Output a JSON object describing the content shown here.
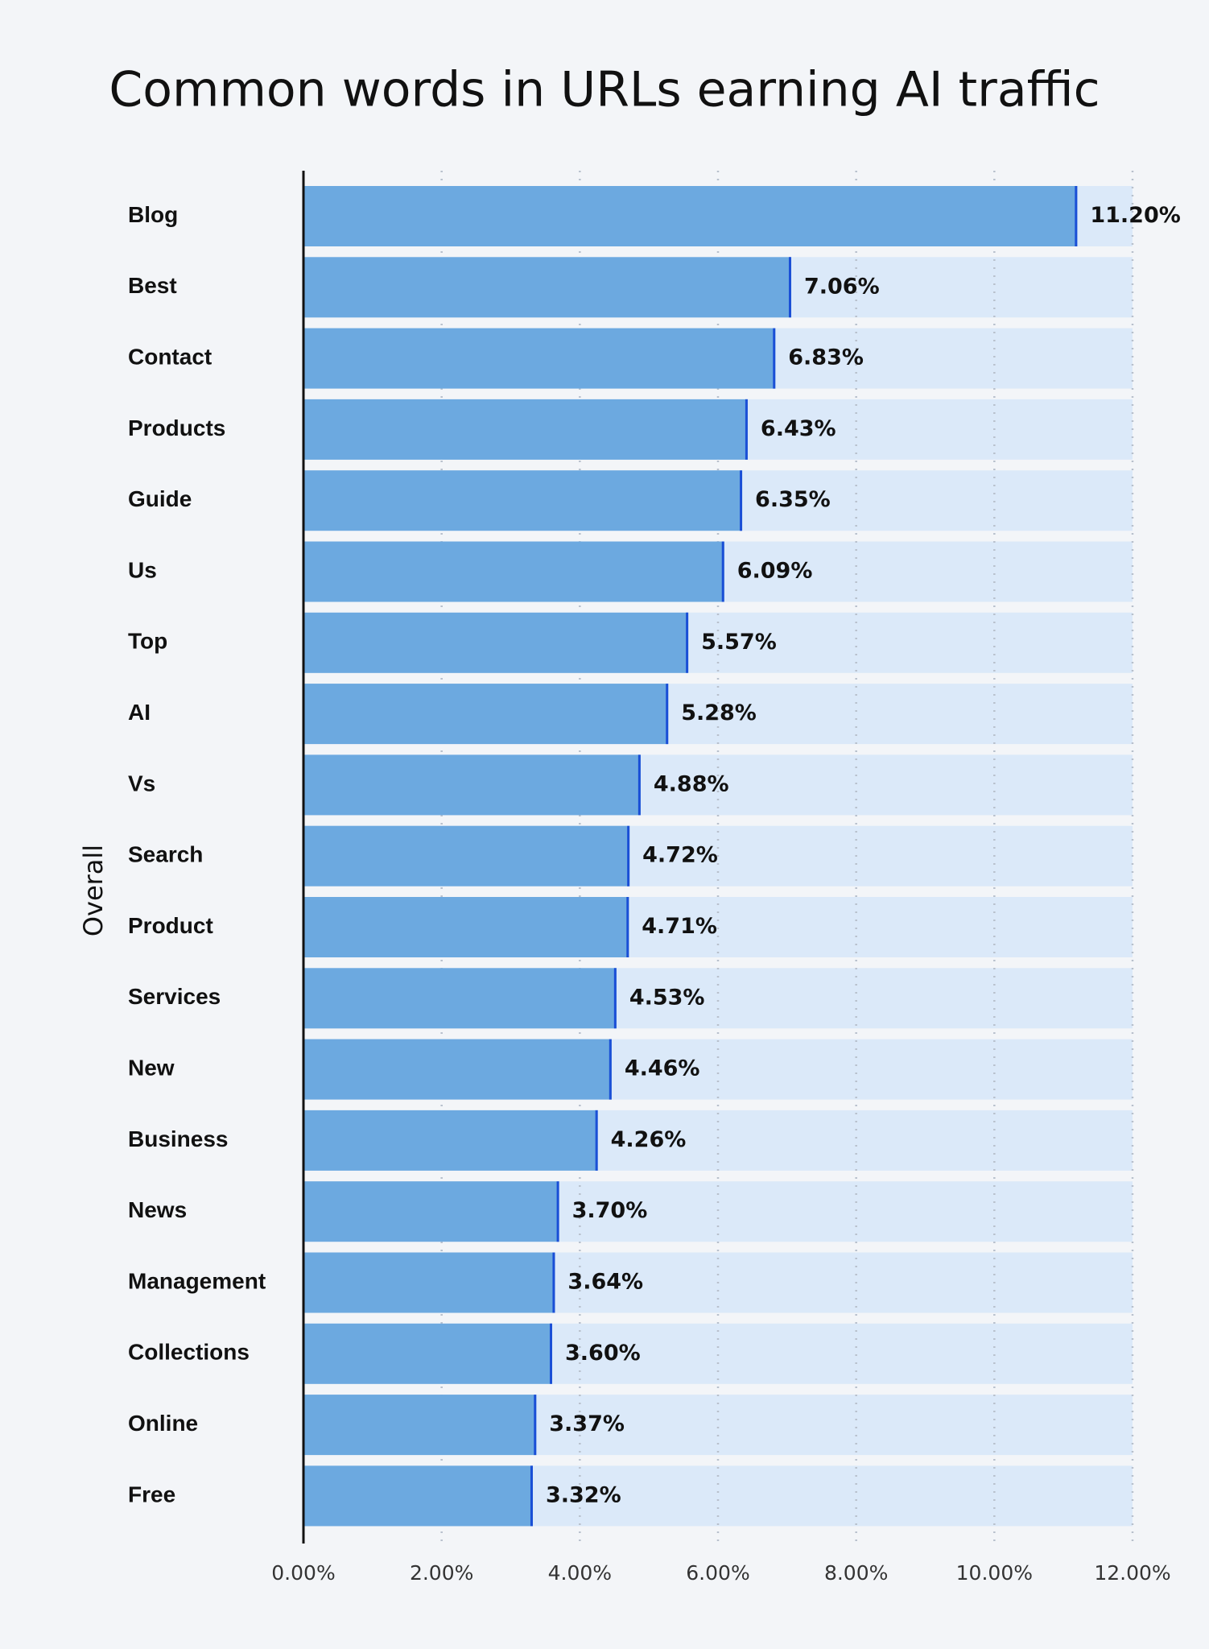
{
  "chart_data": {
    "type": "barh",
    "title": "Common words in URLs earning AI traffic",
    "y_label": "Overall",
    "categories": [
      "Blog",
      "Best",
      "Contact",
      "Products",
      "Guide",
      "Us",
      "Top",
      "AI",
      "Vs",
      "Search",
      "Product",
      "Services",
      "New",
      "Business",
      "News",
      "Management",
      "Collections",
      "Online",
      "Free"
    ],
    "values": [
      11.2,
      7.06,
      6.83,
      6.43,
      6.35,
      6.09,
      5.57,
      5.28,
      4.88,
      4.72,
      4.71,
      4.53,
      4.46,
      4.26,
      3.7,
      3.64,
      3.6,
      3.37,
      3.32
    ],
    "value_labels": [
      "11.20%",
      "7.06%",
      "6.83%",
      "6.43%",
      "6.35%",
      "6.09%",
      "5.57%",
      "5.28%",
      "4.88%",
      "4.72%",
      "4.71%",
      "4.53%",
      "4.46%",
      "4.26%",
      "3.70%",
      "3.64%",
      "3.60%",
      "3.37%",
      "3.32%"
    ],
    "color": "#6ca9e0",
    "edge_color": "#1a4fd6",
    "xlim": [
      0,
      12
    ],
    "xticks": [
      {
        "value": 0,
        "label": "0.00%"
      },
      {
        "value": 2,
        "label": "2.00%"
      },
      {
        "value": 4,
        "label": "4.00%"
      },
      {
        "value": 6,
        "label": "6.00%"
      },
      {
        "value": 8,
        "label": "8.00%"
      },
      {
        "value": 10,
        "label": "10.00%"
      },
      {
        "value": 12,
        "label": "12.00%"
      }
    ],
    "grid": true
  }
}
